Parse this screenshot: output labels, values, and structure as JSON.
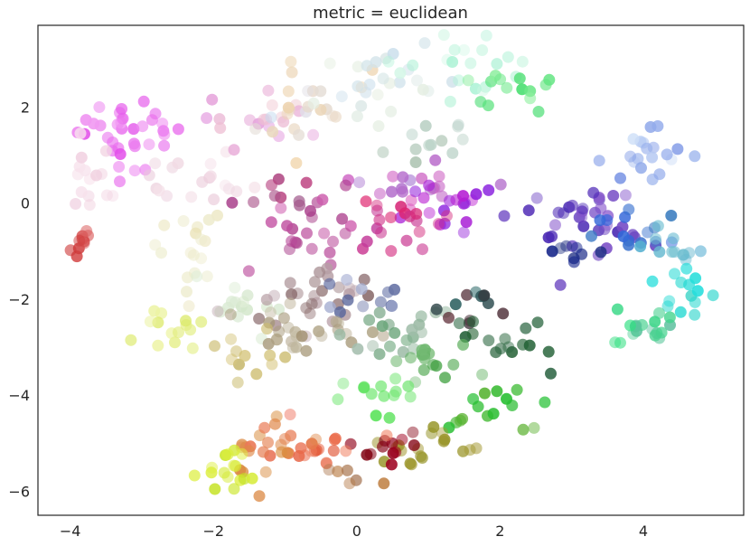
{
  "chart_data": {
    "type": "scatter",
    "title": "metric = euclidean",
    "xlabel": "",
    "ylabel": "",
    "xlim": [
      -4.45,
      5.4
    ],
    "ylim": [
      -6.5,
      3.7
    ],
    "xticks": [
      -4,
      -2,
      0,
      2,
      4
    ],
    "yticks": [
      -6,
      -4,
      -2,
      0,
      2
    ],
    "xtick_labels": [
      "−4",
      "−2",
      "0",
      "2",
      "4"
    ],
    "ytick_labels": [
      "−6",
      "−4",
      "−2",
      "0",
      "2"
    ],
    "grid": false,
    "legend": "none",
    "point_color_note": "each point colored individually (RGB color space)",
    "clusters": [
      {
        "cx": -3.2,
        "cy": 1.5,
        "sx": 0.35,
        "sy": 0.4,
        "n": 35,
        "color": "#e040e8",
        "color2": "#f5b0f5"
      },
      {
        "cx": -3.9,
        "cy": -0.8,
        "sx": 0.1,
        "sy": 0.15,
        "n": 10,
        "color": "#cc3333",
        "color2": "#e07070"
      },
      {
        "cx": -3.7,
        "cy": 0.2,
        "sx": 0.25,
        "sy": 0.5,
        "n": 15,
        "color": "#f0d0e0",
        "color2": "#fae8f0"
      },
      {
        "cx": -2.2,
        "cy": 0.5,
        "sx": 0.4,
        "sy": 0.3,
        "n": 18,
        "color": "#e8c8d8",
        "color2": "#f8e8ee"
      },
      {
        "cx": -2.4,
        "cy": -1.0,
        "sx": 0.3,
        "sy": 0.5,
        "n": 18,
        "color": "#e8e0b0",
        "color2": "#f0f0d8"
      },
      {
        "cx": -2.5,
        "cy": -2.6,
        "sx": 0.3,
        "sy": 0.3,
        "n": 14,
        "color": "#d8e860",
        "color2": "#eef4a8"
      },
      {
        "cx": -1.6,
        "cy": -2.2,
        "sx": 0.3,
        "sy": 0.3,
        "n": 14,
        "color": "#e0eed8",
        "color2": "#c8e0c0"
      },
      {
        "cx": -1.3,
        "cy": 1.8,
        "sx": 0.4,
        "sy": 0.3,
        "n": 18,
        "color": "#f0c8d0",
        "color2": "#e090e0"
      },
      {
        "cx": -0.6,
        "cy": 1.9,
        "sx": 0.4,
        "sy": 0.5,
        "n": 22,
        "color": "#f0d0a0",
        "color2": "#e0e0e8"
      },
      {
        "cx": 0.5,
        "cy": 2.4,
        "sx": 0.5,
        "sy": 0.4,
        "n": 26,
        "color": "#c0d8f0",
        "color2": "#e8f0e0"
      },
      {
        "cx": 1.5,
        "cy": 2.9,
        "sx": 0.5,
        "sy": 0.3,
        "n": 20,
        "color": "#d8f8e8",
        "color2": "#a0f0d0"
      },
      {
        "cx": 2.1,
        "cy": 2.4,
        "sx": 0.3,
        "sy": 0.25,
        "n": 14,
        "color": "#30d860",
        "color2": "#90f0a0"
      },
      {
        "cx": 1.0,
        "cy": 1.3,
        "sx": 0.4,
        "sy": 0.4,
        "n": 12,
        "color": "#a0b8a0",
        "color2": "#c0d8d0"
      },
      {
        "cx": 0.7,
        "cy": 0.5,
        "sx": 0.4,
        "sy": 0.3,
        "n": 20,
        "color": "#a070d0",
        "color2": "#e060c0"
      },
      {
        "cx": 1.2,
        "cy": -0.2,
        "sx": 0.4,
        "sy": 0.3,
        "n": 18,
        "color": "#8020e0",
        "color2": "#c020d0"
      },
      {
        "cx": 0.4,
        "cy": -0.5,
        "sx": 0.35,
        "sy": 0.3,
        "n": 20,
        "color": "#e0206a",
        "color2": "#c040a0"
      },
      {
        "cx": -0.6,
        "cy": -0.4,
        "sx": 0.4,
        "sy": 0.4,
        "n": 24,
        "color": "#a03080",
        "color2": "#d060b0"
      },
      {
        "cx": -1.1,
        "cy": 0.4,
        "sx": 0.3,
        "sy": 0.2,
        "n": 8,
        "color": "#c04080",
        "color2": "#a06090"
      },
      {
        "cx": 4.0,
        "cy": 1.1,
        "sx": 0.3,
        "sy": 0.35,
        "n": 20,
        "color": "#6080e0",
        "color2": "#d0e0f8"
      },
      {
        "cx": 3.1,
        "cy": -0.3,
        "sx": 0.45,
        "sy": 0.35,
        "n": 35,
        "color": "#4020b0",
        "color2": "#9060d0"
      },
      {
        "cx": 2.9,
        "cy": -1.0,
        "sx": 0.25,
        "sy": 0.2,
        "n": 8,
        "color": "#102090",
        "color2": "#203080"
      },
      {
        "cx": 3.9,
        "cy": -0.7,
        "sx": 0.3,
        "sy": 0.3,
        "n": 14,
        "color": "#3060e0",
        "color2": "#4080c0"
      },
      {
        "cx": 4.5,
        "cy": -1.0,
        "sx": 0.3,
        "sy": 0.3,
        "n": 12,
        "color": "#40a0d0",
        "color2": "#70c0d0"
      },
      {
        "cx": 4.6,
        "cy": -1.9,
        "sx": 0.3,
        "sy": 0.25,
        "n": 14,
        "color": "#30d0c0",
        "color2": "#20e0e0"
      },
      {
        "cx": 4.1,
        "cy": -2.5,
        "sx": 0.35,
        "sy": 0.25,
        "n": 18,
        "color": "#30e080",
        "color2": "#60c0a0"
      },
      {
        "cx": -0.7,
        "cy": -1.9,
        "sx": 0.5,
        "sy": 0.3,
        "n": 28,
        "color": "#806060",
        "color2": "#c0a8b0"
      },
      {
        "cx": 0.2,
        "cy": -1.8,
        "sx": 0.3,
        "sy": 0.25,
        "n": 12,
        "color": "#b0b8d8",
        "color2": "#304080"
      },
      {
        "cx": -0.8,
        "cy": -2.8,
        "sx": 0.5,
        "sy": 0.3,
        "n": 26,
        "color": "#a09070",
        "color2": "#c8c0a8"
      },
      {
        "cx": 0.5,
        "cy": -2.6,
        "sx": 0.4,
        "sy": 0.3,
        "n": 20,
        "color": "#a8c0b0",
        "color2": "#60a070"
      },
      {
        "cx": 1.6,
        "cy": -2.2,
        "sx": 0.25,
        "sy": 0.2,
        "n": 12,
        "color": "#600010",
        "color2": "#206060"
      },
      {
        "cx": 2.1,
        "cy": -2.9,
        "sx": 0.3,
        "sy": 0.3,
        "n": 16,
        "color": "#206030",
        "color2": "#306848"
      },
      {
        "cx": 1.0,
        "cy": -3.3,
        "sx": 0.35,
        "sy": 0.3,
        "n": 16,
        "color": "#40a040",
        "color2": "#80c080"
      },
      {
        "cx": 0.2,
        "cy": -3.8,
        "sx": 0.3,
        "sy": 0.3,
        "n": 14,
        "color": "#40e040",
        "color2": "#90e890"
      },
      {
        "cx": -1.5,
        "cy": -3.3,
        "sx": 0.3,
        "sy": 0.3,
        "n": 12,
        "color": "#c0b060",
        "color2": "#d8c880"
      },
      {
        "cx": 1.8,
        "cy": -4.3,
        "sx": 0.4,
        "sy": 0.3,
        "n": 16,
        "color": "#20c030",
        "color2": "#60b030"
      },
      {
        "cx": 1.0,
        "cy": -5.0,
        "sx": 0.4,
        "sy": 0.2,
        "n": 18,
        "color": "#909020",
        "color2": "#b0a040"
      },
      {
        "cx": 0.4,
        "cy": -5.1,
        "sx": 0.25,
        "sy": 0.2,
        "n": 12,
        "color": "#800010",
        "color2": "#a00020"
      },
      {
        "cx": -0.5,
        "cy": -5.2,
        "sx": 0.35,
        "sy": 0.3,
        "n": 18,
        "color": "#e05030",
        "color2": "#f08060"
      },
      {
        "cx": -1.2,
        "cy": -5.0,
        "sx": 0.35,
        "sy": 0.35,
        "n": 22,
        "color": "#d89040",
        "color2": "#f07060"
      },
      {
        "cx": -1.7,
        "cy": -5.6,
        "sx": 0.2,
        "sy": 0.3,
        "n": 16,
        "color": "#c0e020",
        "color2": "#e0f040"
      },
      {
        "cx": -0.1,
        "cy": -5.7,
        "sx": 0.3,
        "sy": 0.1,
        "n": 6,
        "color": "#c08040",
        "color2": "#a07050"
      }
    ]
  }
}
